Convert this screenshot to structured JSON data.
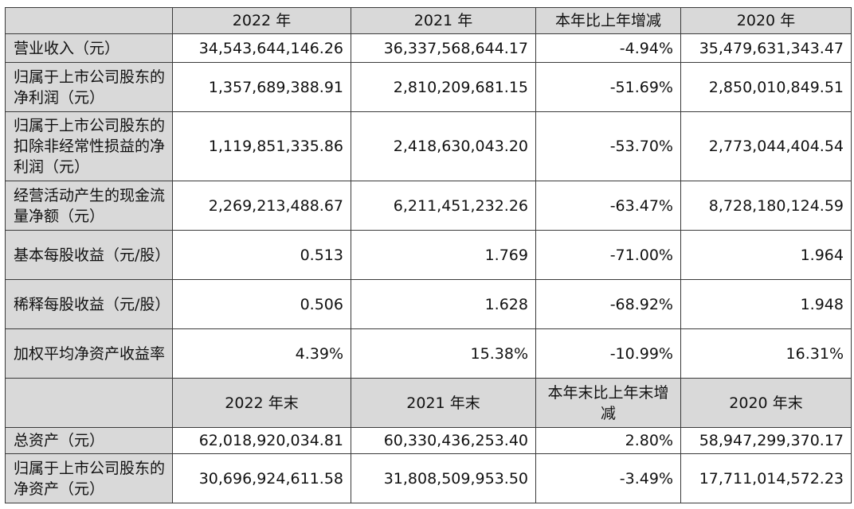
{
  "header1": [
    "",
    "2022 年",
    "2021 年",
    "本年比上年增减",
    "2020 年"
  ],
  "rows1": [
    {
      "label": "营业收入（元）",
      "values": [
        "34,543,644,146.26",
        "36,337,568,644.17",
        "-4.94%",
        "35,479,631,343.47"
      ]
    },
    {
      "label": "归属于上市公司股东的净利润（元）",
      "values": [
        "1,357,689,388.91",
        "2,810,209,681.15",
        "-51.69%",
        "2,850,010,849.51"
      ]
    },
    {
      "label": "归属于上市公司股东的扣除非经常性损益的净利润（元）",
      "values": [
        "1,119,851,335.86",
        "2,418,630,043.20",
        "-53.70%",
        "2,773,044,404.54"
      ]
    },
    {
      "label": "经营活动产生的现金流量净额（元）",
      "values": [
        "2,269,213,488.67",
        "6,211,451,232.26",
        "-63.47%",
        "8,728,180,124.59"
      ]
    },
    {
      "label": "基本每股收益（元/股）",
      "values": [
        "0.513",
        "1.769",
        "-71.00%",
        "1.964"
      ]
    },
    {
      "label": "稀释每股收益（元/股）",
      "values": [
        "0.506",
        "1.628",
        "-68.92%",
        "1.948"
      ]
    },
    {
      "label": "加权平均净资产收益率",
      "values": [
        "4.39%",
        "15.38%",
        "-10.99%",
        "16.31%"
      ]
    }
  ],
  "header2": [
    "",
    "2022 年末",
    "2021 年末",
    "本年末比上年末增减",
    "2020 年末"
  ],
  "rows2": [
    {
      "label": "总资产（元）",
      "values": [
        "62,018,920,034.81",
        "60,330,436,253.40",
        "2.80%",
        "58,947,299,370.17"
      ]
    },
    {
      "label": "归属于上市公司股东的净资产（元）",
      "values": [
        "30,696,924,611.58",
        "31,808,509,953.50",
        "-3.49%",
        "17,711,014,572.23"
      ]
    }
  ]
}
